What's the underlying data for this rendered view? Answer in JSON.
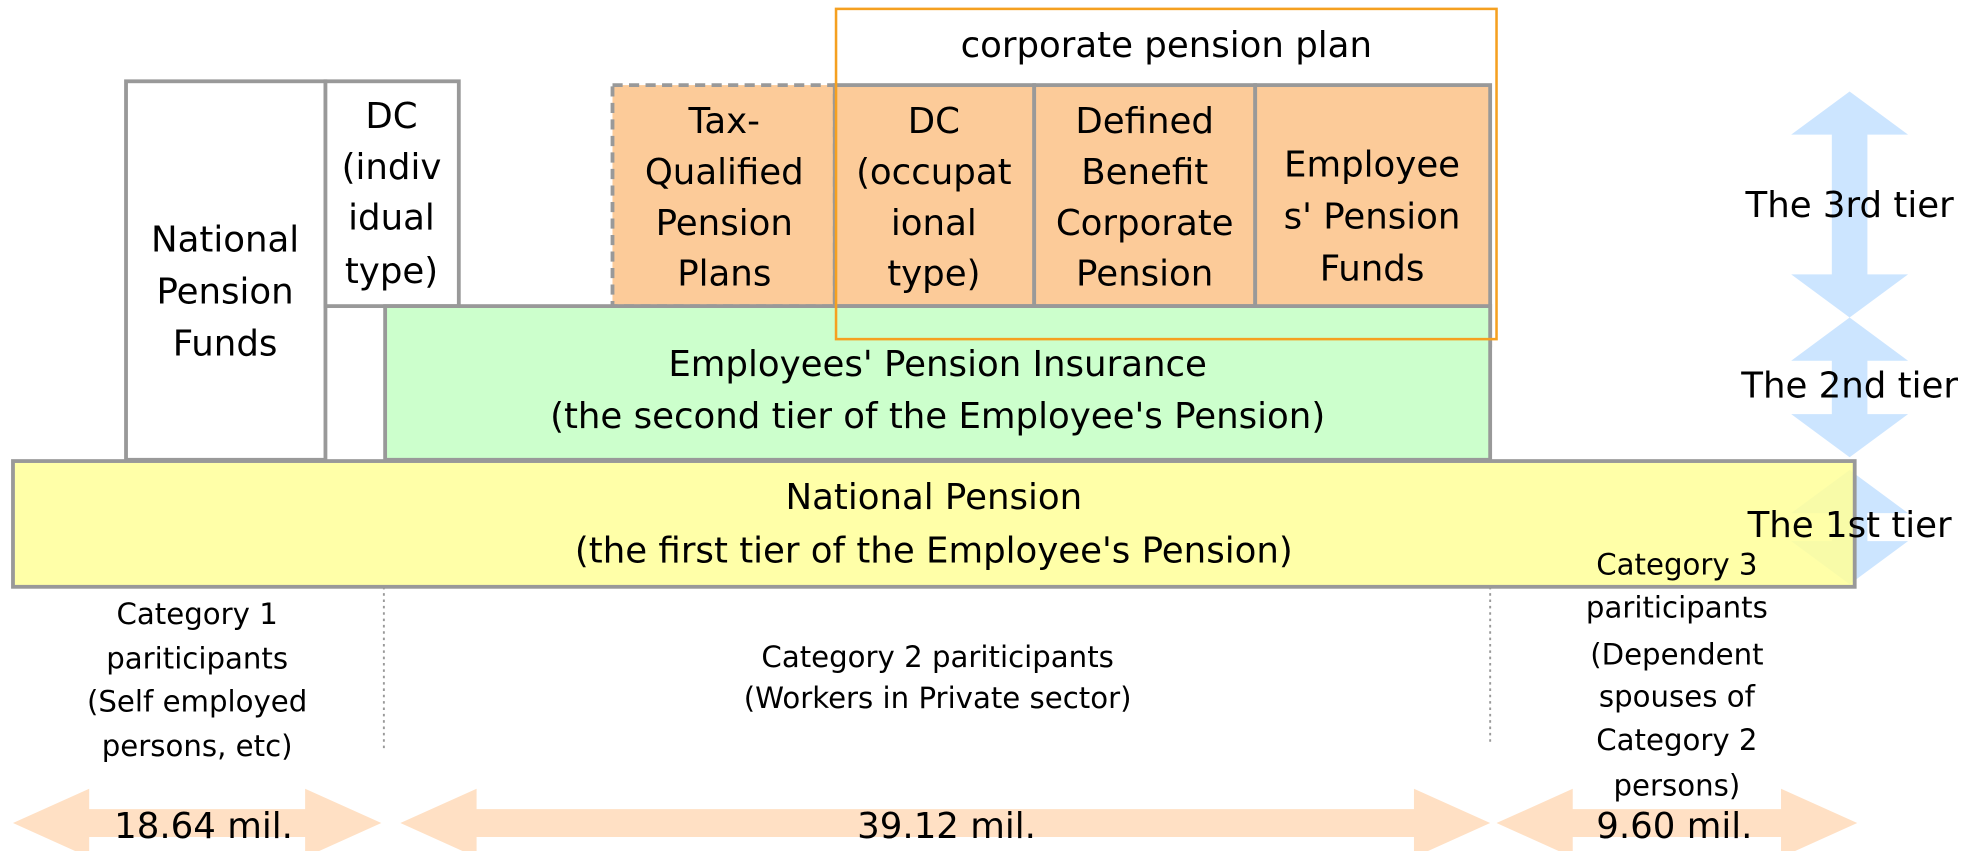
{
  "corporate_plan": {
    "label": "corporate pension plan"
  },
  "boxes": [
    {
      "lines": [
        "National",
        "Pension",
        "Funds"
      ]
    },
    {
      "lines": [
        "DC",
        "(indiv",
        "idual",
        "type)"
      ]
    },
    {
      "lines": [
        "Tax-",
        "Qualified",
        "Pension",
        "Plans"
      ]
    },
    {
      "lines": [
        "DC",
        "(occupat",
        "ional",
        "type)"
      ]
    },
    {
      "lines": [
        "Defined",
        "Benefit",
        "Corporate",
        "Pension"
      ]
    },
    {
      "lines": [
        "Employee",
        "s' Pension",
        "Funds"
      ]
    },
    {
      "lines": [
        "Employees' Pension Insurance",
        "(the second tier of the Employee's Pension)"
      ]
    },
    {
      "lines": [
        "National Pension",
        "(the first tier of the Employee's Pension)"
      ]
    }
  ],
  "tiers": [
    "The 3rd tier",
    "The 2nd tier",
    "The 1st tier"
  ],
  "categories": [
    {
      "lines": [
        "Category 1",
        "pariticipants",
        "(Self employed",
        "persons, etc)"
      ],
      "count": "18.64 mil."
    },
    {
      "lines": [
        "Category 2 pariticipants",
        "(Workers in Private sector)"
      ],
      "count": "39.12 mil."
    },
    {
      "lines": [
        "Category 3",
        "pariticipants",
        "(Dependent",
        "spouses of",
        "Category 2",
        "persons)"
      ],
      "count": "9.60 mil."
    }
  ]
}
